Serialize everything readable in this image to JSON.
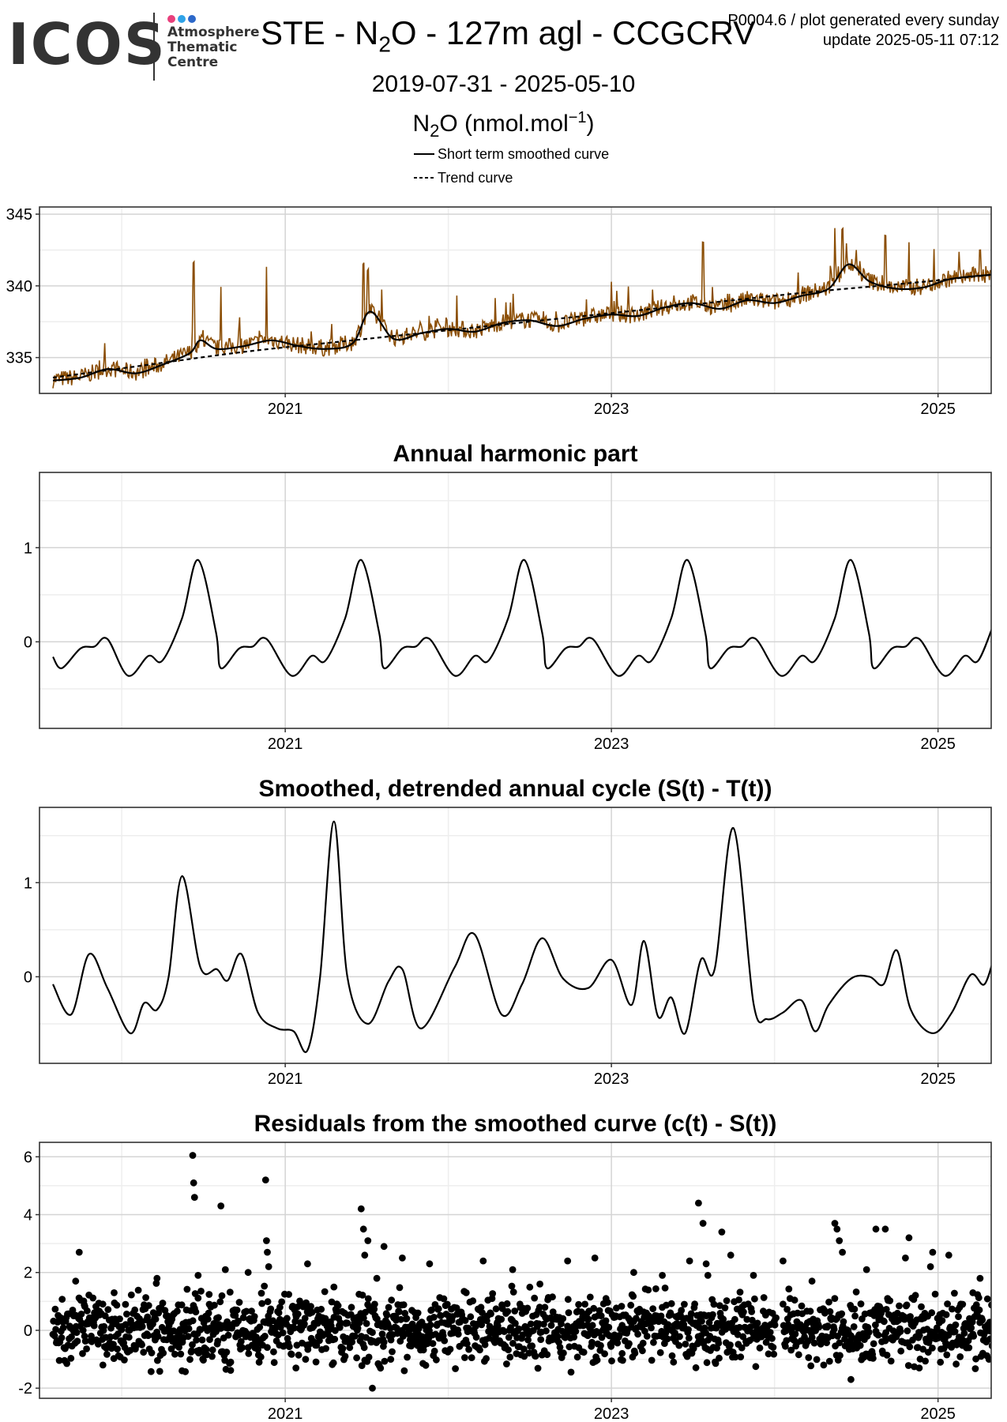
{
  "header": {
    "logo": {
      "wordmark": "ICOS",
      "subtitle_lines": [
        "Atmosphere",
        "Thematic",
        "Centre"
      ],
      "dot_colors": [
        "#e8407c",
        "#2fa3e8",
        "#2c68c9"
      ]
    },
    "title_parts": [
      "STE - N",
      "2",
      "O - 127m agl - CCGCRV"
    ],
    "version_line": "P0004.6 / plot generated every sunday",
    "update_line": "update  2025-05-11 07:12",
    "date_range": "2019-07-31 - 2025-05-10",
    "unit_parts": [
      "N",
      "2",
      "O (nmol.mol",
      "−1",
      ")"
    ]
  },
  "legend": {
    "items": [
      {
        "label": "Short term smoothed curve",
        "style": "solid"
      },
      {
        "label": "Trend curve",
        "style": "dashed"
      }
    ]
  },
  "colors": {
    "data_line": "#8b4e05",
    "curve": "#000000",
    "grid_major": "#d4d4d4",
    "grid_minor": "#eeeeee",
    "frame": "#333333"
  },
  "chart_data": [
    {
      "id": "observations",
      "type": "line",
      "title": "",
      "xlim": [
        "2019-07-01",
        "2025-04-30"
      ],
      "ylim": [
        332.5,
        345.5
      ],
      "x_ticks": [
        "2021",
        "2023",
        "2025"
      ],
      "y_ticks": [
        335,
        340,
        345
      ],
      "grid": true,
      "series": [
        {
          "name": "Short term smoothed curve",
          "style": "solid",
          "x": [
            "2019-07-31",
            "2019-10-01",
            "2019-12-01",
            "2020-02-01",
            "2020-04-01",
            "2020-06-01",
            "2020-06-25",
            "2020-08-01",
            "2020-10-01",
            "2020-12-01",
            "2021-02-01",
            "2021-04-01",
            "2021-06-01",
            "2021-07-10",
            "2021-09-01",
            "2021-11-01",
            "2022-01-01",
            "2022-03-01",
            "2022-05-01",
            "2022-07-01",
            "2022-09-01",
            "2022-11-01",
            "2023-01-01",
            "2023-03-01",
            "2023-05-01",
            "2023-07-01",
            "2023-09-01",
            "2023-11-01",
            "2024-01-01",
            "2024-03-01",
            "2024-05-01",
            "2024-06-15",
            "2024-08-01",
            "2024-10-01",
            "2024-12-01",
            "2025-02-01",
            "2025-05-10"
          ],
          "y": [
            333.4,
            333.6,
            334.2,
            333.9,
            334.5,
            335.3,
            336.2,
            335.6,
            335.8,
            336.2,
            335.8,
            335.6,
            336.0,
            338.2,
            336.3,
            336.7,
            337.0,
            336.8,
            337.4,
            337.6,
            337.2,
            337.7,
            338.0,
            337.9,
            338.5,
            338.8,
            338.4,
            339.0,
            338.8,
            339.3,
            339.8,
            341.5,
            340.3,
            339.8,
            339.9,
            340.5,
            340.8
          ]
        },
        {
          "name": "Trend curve",
          "style": "dashed",
          "x": [
            "2019-07-31",
            "2020-03-01",
            "2020-10-01",
            "2021-05-01",
            "2021-12-01",
            "2022-07-01",
            "2023-02-01",
            "2023-09-01",
            "2024-04-01",
            "2024-11-01",
            "2025-05-10"
          ],
          "y": [
            333.6,
            334.5,
            335.4,
            336.1,
            336.8,
            337.5,
            338.2,
            338.9,
            339.6,
            340.2,
            340.8
          ]
        }
      ]
    },
    {
      "id": "annual-harmonic",
      "type": "line",
      "title": "Annual harmonic part",
      "xlim": [
        "2019-07-01",
        "2025-04-30"
      ],
      "ylim": [
        -0.92,
        1.8
      ],
      "x_ticks": [
        "2021",
        "2023",
        "2025"
      ],
      "y_ticks": [
        0,
        1
      ],
      "grid": true,
      "series": [
        {
          "x": [
            "2019-07-31",
            "2019-08-20",
            "2019-10-01",
            "2019-11-01",
            "2019-11-30",
            "2020-01-15",
            "2020-03-01",
            "2020-04-01",
            "2020-05-15",
            "2020-06-20",
            "2020-07-30",
            "2020-08-10",
            "2020-09-20",
            "2020-10-20",
            "2020-11-20",
            "2021-01-15",
            "2021-03-01",
            "2021-04-01",
            "2021-05-15",
            "2021-06-20",
            "2021-07-30",
            "2021-08-10",
            "2021-09-20",
            "2021-10-20",
            "2021-11-20",
            "2022-01-15",
            "2022-03-01",
            "2022-04-01",
            "2022-05-15",
            "2022-06-20",
            "2022-07-30",
            "2022-08-10",
            "2022-09-20",
            "2022-10-20",
            "2022-11-20",
            "2023-01-15",
            "2023-03-01",
            "2023-04-01",
            "2023-05-15",
            "2023-06-20",
            "2023-07-30",
            "2023-08-10",
            "2023-09-20",
            "2023-10-20",
            "2023-11-20",
            "2024-01-15",
            "2024-03-01",
            "2024-04-01",
            "2024-05-15",
            "2024-06-20",
            "2024-07-30",
            "2024-08-10",
            "2024-09-20",
            "2024-10-20",
            "2024-11-20",
            "2025-01-15",
            "2025-03-01",
            "2025-04-01",
            "2025-05-10"
          ],
          "y": [
            -0.16,
            -0.28,
            -0.07,
            -0.05,
            0.03,
            -0.36,
            -0.15,
            -0.2,
            0.25,
            0.87,
            0.1,
            -0.28,
            -0.07,
            -0.05,
            0.03,
            -0.36,
            -0.15,
            -0.2,
            0.25,
            0.87,
            0.1,
            -0.28,
            -0.07,
            -0.05,
            0.03,
            -0.36,
            -0.15,
            -0.2,
            0.25,
            0.87,
            0.1,
            -0.28,
            -0.07,
            -0.05,
            0.03,
            -0.36,
            -0.15,
            -0.2,
            0.25,
            0.87,
            0.1,
            -0.28,
            -0.07,
            -0.05,
            0.03,
            -0.36,
            -0.15,
            -0.2,
            0.25,
            0.87,
            0.1,
            -0.28,
            -0.07,
            -0.05,
            0.03,
            -0.36,
            -0.15,
            -0.2,
            0.25
          ]
        }
      ]
    },
    {
      "id": "detrended-cycle",
      "type": "line",
      "title": "Smoothed, detrended annual cycle (S(t) - T(t))",
      "xlim": [
        "2019-07-01",
        "2025-04-30"
      ],
      "ylim": [
        -0.92,
        1.8
      ],
      "x_ticks": [
        "2021",
        "2023",
        "2025"
      ],
      "y_ticks": [
        0,
        1
      ],
      "grid": true,
      "series": [
        {
          "x": [
            "2019-07-31",
            "2019-09-10",
            "2019-10-20",
            "2019-11-30",
            "2020-01-20",
            "2020-02-20",
            "2020-03-20",
            "2020-04-15",
            "2020-05-15",
            "2020-06-25",
            "2020-08-01",
            "2020-08-25",
            "2020-09-25",
            "2020-11-01",
            "2020-12-15",
            "2021-01-20",
            "2021-02-20",
            "2021-03-20",
            "2021-04-20",
            "2021-05-20",
            "2021-07-05",
            "2021-08-20",
            "2021-09-20",
            "2021-11-01",
            "2022-01-15",
            "2022-03-01",
            "2022-04-30",
            "2022-06-15",
            "2022-07-30",
            "2022-09-15",
            "2022-11-10",
            "2023-01-01",
            "2023-02-15",
            "2023-03-15",
            "2023-04-15",
            "2023-05-15",
            "2023-06-15",
            "2023-07-20",
            "2023-08-20",
            "2023-10-01",
            "2023-11-15",
            "2023-12-15",
            "2024-01-20",
            "2024-03-01",
            "2024-04-01",
            "2024-05-01",
            "2024-06-20",
            "2024-08-01",
            "2024-09-01",
            "2024-10-01",
            "2024-11-01",
            "2024-12-20",
            "2025-02-01",
            "2025-03-15",
            "2025-04-15",
            "2025-05-10"
          ],
          "y": [
            -0.08,
            -0.4,
            0.24,
            -0.12,
            -0.6,
            -0.28,
            -0.35,
            0.0,
            1.07,
            0.1,
            0.08,
            -0.04,
            0.24,
            -0.38,
            -0.55,
            -0.58,
            -0.78,
            0.0,
            1.65,
            0.0,
            -0.5,
            -0.05,
            0.08,
            -0.55,
            0.1,
            0.45,
            -0.4,
            -0.08,
            0.41,
            -0.02,
            -0.12,
            0.18,
            -0.3,
            0.38,
            -0.42,
            -0.22,
            -0.6,
            0.18,
            0.08,
            1.58,
            -0.28,
            -0.45,
            -0.38,
            -0.25,
            -0.58,
            -0.3,
            -0.02,
            0.0,
            -0.08,
            0.28,
            -0.35,
            -0.6,
            -0.38,
            0.02,
            -0.08,
            0.28
          ]
        }
      ]
    },
    {
      "id": "residuals",
      "type": "scatter",
      "title": "Residuals from the smoothed curve (c(t) - S(t))",
      "xlim": [
        "2019-07-01",
        "2025-04-30"
      ],
      "ylim": [
        -2.35,
        6.5
      ],
      "x_ticks": [
        "2021",
        "2023",
        "2025"
      ],
      "y_ticks": [
        -2,
        0,
        2,
        4,
        6
      ],
      "grid": true,
      "series": [
        {
          "x": [
            "2019-08-15",
            "2019-08-25",
            "2019-09-20",
            "2019-09-28",
            "2019-10-10",
            "2019-11-01",
            "2019-11-20",
            "2019-12-15",
            "2020-01-10",
            "2020-02-15",
            "2020-03-20",
            "2020-04-10",
            "2020-05-15",
            "2020-06-08",
            "2020-06-10",
            "2020-06-12",
            "2020-06-20",
            "2020-07-05",
            "2020-07-15",
            "2020-08-10",
            "2020-08-20",
            "2020-09-01",
            "2020-09-15",
            "2020-10-10",
            "2020-10-25",
            "2020-11-18",
            "2020-11-20",
            "2020-11-22",
            "2020-11-25",
            "2020-12-20",
            "2021-01-25",
            "2021-02-20",
            "2021-03-15",
            "2021-04-20",
            "2021-05-15",
            "2021-06-20",
            "2021-06-25",
            "2021-06-28",
            "2021-07-05",
            "2021-07-15",
            "2021-07-25",
            "2021-08-10",
            "2021-08-25",
            "2021-09-20",
            "2021-10-25",
            "2021-11-20",
            "2021-12-25",
            "2022-02-10",
            "2022-03-20",
            "2022-04-20",
            "2022-05-25",
            "2022-06-20",
            "2022-07-25",
            "2022-08-20",
            "2022-09-25",
            "2022-10-20",
            "2022-11-25",
            "2022-12-20",
            "2023-01-25",
            "2023-02-20",
            "2023-03-20",
            "2023-04-25",
            "2023-05-20",
            "2023-06-25",
            "2023-07-15",
            "2023-07-25",
            "2023-08-01",
            "2023-08-05",
            "2023-08-20",
            "2023-09-05",
            "2023-09-25",
            "2023-10-20",
            "2023-11-15",
            "2024-01-20",
            "2024-02-20",
            "2024-03-25",
            "2024-04-20",
            "2024-05-15",
            "2024-05-20",
            "2024-05-25",
            "2024-06-01",
            "2024-06-20",
            "2024-07-25",
            "2024-08-15",
            "2024-09-05",
            "2024-09-20",
            "2024-10-20",
            "2024-10-28",
            "2024-11-20",
            "2024-12-15",
            "2024-12-20",
            "2025-01-25",
            "2025-02-25",
            "2025-03-20",
            "2025-04-05",
            "2025-04-25"
          ],
          "y": [
            0.4,
            -0.6,
            1.7,
            2.7,
            -0.2,
            0.6,
            -1.2,
            1.3,
            0.2,
            -0.5,
            1.8,
            0.5,
            -1.4,
            6.05,
            5.1,
            4.6,
            1.9,
            -0.8,
            0.9,
            4.3,
            2.1,
            -1.1,
            0.7,
            2.0,
            -0.3,
            5.2,
            3.1,
            2.7,
            2.2,
            0.8,
            -1.3,
            2.3,
            0.4,
            1.5,
            -0.9,
            4.2,
            3.5,
            2.6,
            3.1,
            -2.0,
            1.8,
            2.9,
            -1.0,
            2.5,
            0.6,
            2.3,
            -0.7,
            1.3,
            2.4,
            0.2,
            2.1,
            -0.9,
            1.6,
            0.4,
            2.4,
            -0.6,
            2.5,
            1.1,
            -0.8,
            2.0,
            0.6,
            1.9,
            -1.1,
            2.4,
            4.4,
            3.7,
            2.3,
            1.9,
            -0.3,
            3.4,
            2.6,
            0.8,
            1.9,
            2.4,
            0.3,
            1.7,
            -1.2,
            3.7,
            3.5,
            3.1,
            2.7,
            -1.7,
            2.1,
            3.5,
            3.5,
            0.4,
            2.5,
            3.2,
            -1.3,
            2.2,
            2.7,
            2.6,
            0.9,
            1.3,
            1.8,
            -1.0
          ]
        }
      ]
    }
  ]
}
